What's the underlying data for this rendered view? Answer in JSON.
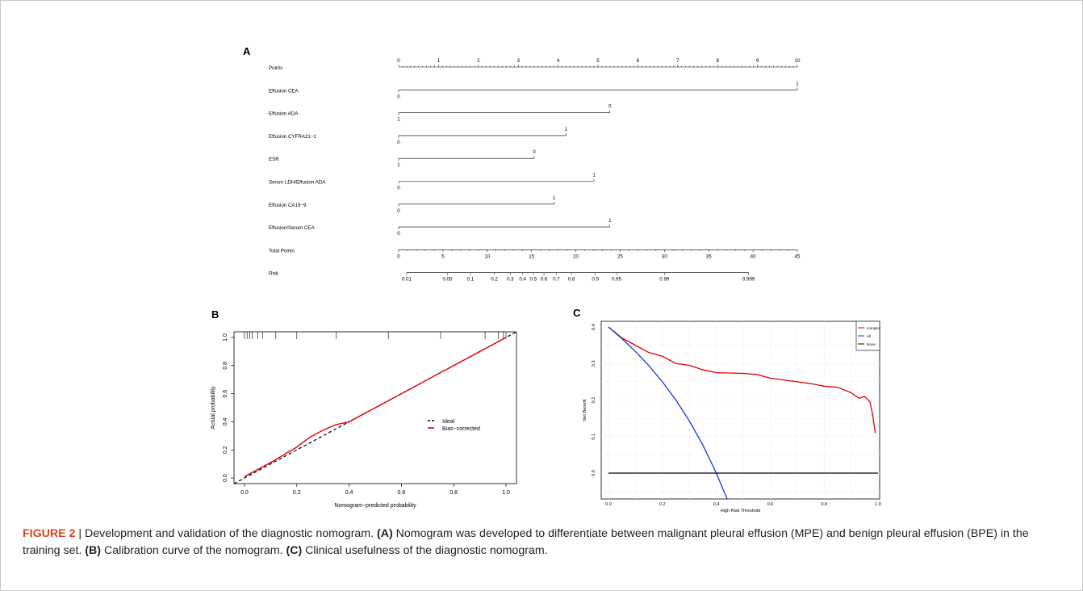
{
  "panel_labels": {
    "a": "A",
    "b": "B",
    "c": "C"
  },
  "chart_data": [
    {
      "type": "nomogram",
      "points_label": "Points",
      "points_ticks": [
        "0",
        "1",
        "2",
        "3",
        "4",
        "5",
        "6",
        "7",
        "8",
        "9",
        "10"
      ],
      "variables": [
        {
          "name": "Effusion CEA",
          "max_points": 10,
          "high_label": "1",
          "low_label": "0"
        },
        {
          "name": "Effusion ADA",
          "max_points": 5.3,
          "high_label": "0",
          "low_label": "1"
        },
        {
          "name": "Effusion CYFRA21−1",
          "max_points": 4.2,
          "high_label": "1",
          "low_label": "0"
        },
        {
          "name": "ESR",
          "max_points": 3.4,
          "high_label": "0",
          "low_label": "1"
        },
        {
          "name": "Serum LDH/Effusion ADA",
          "max_points": 4.9,
          "high_label": "1",
          "low_label": "0"
        },
        {
          "name": "Effusion CA19−9",
          "max_points": 3.9,
          "high_label": "1",
          "low_label": "0"
        },
        {
          "name": "Effusion/Serum CEA",
          "max_points": 5.3,
          "high_label": "1",
          "low_label": "0"
        }
      ],
      "total_points_label": "Total Points",
      "total_points_ticks": [
        "0",
        "5",
        "10",
        "15",
        "20",
        "25",
        "30",
        "35",
        "40",
        "45"
      ],
      "risk_label": "Risk",
      "risk_ticks": [
        {
          "label": "0.01",
          "total": 0.9
        },
        {
          "label": "0.05",
          "total": 5.5
        },
        {
          "label": "0.1",
          "total": 8.1
        },
        {
          "label": "0.2",
          "total": 10.8
        },
        {
          "label": "0.3",
          "total": 12.6
        },
        {
          "label": "0.4",
          "total": 14.0
        },
        {
          "label": "0.5",
          "total": 15.2
        },
        {
          "label": "0.6",
          "total": 16.4
        },
        {
          "label": "0.7",
          "total": 17.8
        },
        {
          "label": "0.8",
          "total": 19.5
        },
        {
          "label": "0.9",
          "total": 22.2
        },
        {
          "label": "0.95",
          "total": 24.6
        },
        {
          "label": "0.99",
          "total": 30.0
        },
        {
          "label": "0.999",
          "total": 39.5
        }
      ]
    },
    {
      "type": "line",
      "xlabel": "Nomogram−predicted probability",
      "ylabel": "Actual probability",
      "xlim": [
        -0.04,
        1.04
      ],
      "ylim": [
        -0.04,
        1.04
      ],
      "x_ticks": [
        "0.0",
        "0.2",
        "0.4",
        "0.6",
        "0.8",
        "1.0"
      ],
      "y_ticks": [
        "0.0",
        "0.2",
        "0.4",
        "0.6",
        "0.8",
        "1.0"
      ],
      "legend": [
        "Ideal",
        "Bias−corrected"
      ],
      "series": [
        {
          "name": "Ideal",
          "color": "#000000",
          "dashed": true,
          "x": [
            -0.04,
            1.04
          ],
          "y": [
            -0.04,
            1.04
          ]
        },
        {
          "name": "Bias−corrected",
          "color": "#e00000",
          "x": [
            0.0,
            0.1,
            0.2,
            0.25,
            0.3,
            0.35,
            0.4,
            0.5,
            0.6,
            0.7,
            0.8,
            0.9,
            1.0
          ],
          "y": [
            0.01,
            0.11,
            0.22,
            0.29,
            0.34,
            0.38,
            0.4,
            0.5,
            0.6,
            0.7,
            0.8,
            0.9,
            1.0
          ]
        }
      ],
      "rug_top": [
        0.0,
        0.01,
        0.02,
        0.03,
        0.05,
        0.07,
        0.12,
        0.2,
        0.35,
        0.55,
        0.75,
        0.92,
        0.97,
        0.99,
        1.0
      ]
    },
    {
      "type": "line",
      "xlabel": "High Risk Threshold",
      "ylabel": "Net Benefit",
      "xlim": [
        0,
        1.0
      ],
      "ylim": [
        -0.06,
        0.4
      ],
      "x_ticks": [
        "0.0",
        "0.2",
        "0.4",
        "0.6",
        "0.8",
        "1.0"
      ],
      "y_ticks": [
        "0.0",
        "0.1",
        "0.2",
        "0.3",
        "0.4"
      ],
      "legend": [
        "complex",
        "All",
        "None"
      ],
      "series": [
        {
          "name": "complex",
          "color": "#e00000",
          "x": [
            0.0,
            0.05,
            0.1,
            0.15,
            0.2,
            0.25,
            0.3,
            0.35,
            0.4,
            0.45,
            0.5,
            0.55,
            0.6,
            0.65,
            0.7,
            0.75,
            0.8,
            0.85,
            0.9,
            0.93,
            0.95,
            0.97,
            0.98,
            0.99
          ],
          "y": [
            0.4,
            0.37,
            0.35,
            0.33,
            0.32,
            0.3,
            0.295,
            0.283,
            0.275,
            0.274,
            0.273,
            0.27,
            0.26,
            0.255,
            0.25,
            0.245,
            0.238,
            0.235,
            0.22,
            0.205,
            0.21,
            0.195,
            0.16,
            0.11
          ]
        },
        {
          "name": "All",
          "color": "#1a35d6",
          "x": [
            0.0,
            0.05,
            0.1,
            0.15,
            0.2,
            0.25,
            0.3,
            0.35,
            0.4,
            0.43,
            0.44
          ],
          "y": [
            0.4,
            0.368,
            0.333,
            0.294,
            0.25,
            0.2,
            0.143,
            0.077,
            0.0,
            -0.053,
            -0.07
          ]
        },
        {
          "name": "None",
          "color": "#000000",
          "x": [
            0.0,
            1.0
          ],
          "y": [
            0.0,
            0.0
          ]
        }
      ]
    }
  ],
  "caption": {
    "fig_label": "FIGURE 2",
    "sep": " | ",
    "t1": "Development and validation of the diagnostic nomogram. ",
    "a": "(A)",
    "t2": " Nomogram was developed to differentiate between malignant pleural effusion (MPE) and benign pleural effusion (BPE) in the training set. ",
    "b": "(B)",
    "t3": " Calibration curve of the nomogram. ",
    "c": "(C)",
    "t4": " Clinical usefulness of the diagnostic nomogram."
  }
}
